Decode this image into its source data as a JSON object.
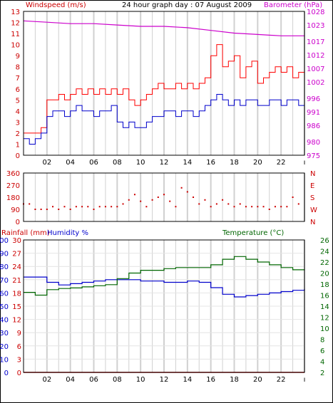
{
  "chart_data": [
    {
      "type": "line",
      "title": "24 hour graph day : 07 August 2009",
      "ylabel": "Windspeed (m/s)",
      "y2label": "Barometer (hPa)",
      "ylim": [
        0,
        13
      ],
      "yticks": [
        0,
        1,
        2,
        3,
        4,
        5,
        6,
        7,
        8,
        9,
        10,
        11,
        12,
        13
      ],
      "y2lim": [
        975,
        1028
      ],
      "y2ticks": [
        975,
        980,
        986,
        991,
        996,
        1002,
        1007,
        1012,
        1017,
        1023,
        1028
      ],
      "xlim": [
        0,
        24
      ],
      "xtick_labels": [
        "02",
        "04",
        "06",
        "08",
        "10",
        "12",
        "14",
        "16",
        "18",
        "20",
        "22"
      ],
      "grid": true,
      "colors": {
        "gust": "#ff0000",
        "average": "#0000cc",
        "barometer": "#cc00cc",
        "axis_left": "#cc0000",
        "axis_right": "#cc00cc"
      },
      "series": [
        {
          "key": "gust",
          "x": [
            0,
            0.5,
            1,
            1.5,
            2,
            2.5,
            3,
            3.5,
            4,
            4.5,
            5,
            5.5,
            6,
            6.5,
            7,
            7.5,
            8,
            8.5,
            9,
            9.5,
            10,
            10.5,
            11,
            11.5,
            12,
            12.5,
            13,
            13.5,
            14,
            14.5,
            15,
            15.5,
            16,
            16.5,
            17,
            17.5,
            18,
            18.5,
            19,
            19.5,
            20,
            20.5,
            21,
            21.5,
            22,
            22.5,
            23,
            23.5
          ],
          "values": [
            2,
            2,
            2,
            2.5,
            5,
            5,
            5.5,
            5,
            5.5,
            6,
            5.5,
            6,
            5.5,
            6,
            5.5,
            6,
            5.5,
            6,
            5,
            4.5,
            5,
            5.5,
            6,
            6.5,
            6,
            6,
            6.5,
            6,
            6.5,
            6,
            6.5,
            7,
            9,
            10,
            8,
            8.5,
            9,
            7,
            8,
            8.5,
            6.5,
            7,
            7.5,
            8,
            7.5,
            8,
            7,
            7.5
          ]
        },
        {
          "key": "average",
          "x": [
            0,
            0.5,
            1,
            1.5,
            2,
            2.5,
            3,
            3.5,
            4,
            4.5,
            5,
            5.5,
            6,
            6.5,
            7,
            7.5,
            8,
            8.5,
            9,
            9.5,
            10,
            10.5,
            11,
            11.5,
            12,
            12.5,
            13,
            13.5,
            14,
            14.5,
            15,
            15.5,
            16,
            16.5,
            17,
            17.5,
            18,
            18.5,
            19,
            19.5,
            20,
            20.5,
            21,
            21.5,
            22,
            22.5,
            23,
            23.5
          ],
          "values": [
            1.5,
            1,
            1.5,
            2,
            3.5,
            4,
            4,
            3.5,
            4,
            4.5,
            4,
            4,
            3.5,
            4,
            4,
            4.5,
            3,
            2.5,
            3,
            2.5,
            2.5,
            3,
            3.5,
            3.5,
            4,
            4,
            3.5,
            4,
            4,
            3.5,
            4,
            4.5,
            5,
            5.5,
            5,
            4.5,
            5,
            4.5,
            5,
            5,
            4.5,
            4.5,
            5,
            5,
            4.5,
            5,
            5,
            4.5
          ]
        },
        {
          "key": "barometer",
          "axis": "right",
          "x": [
            0,
            2,
            4,
            6,
            8,
            10,
            12,
            14,
            16,
            18,
            20,
            22,
            24
          ],
          "values": [
            1024.5,
            1024,
            1023.5,
            1023.5,
            1023,
            1022.5,
            1022.5,
            1022,
            1021,
            1020,
            1019.5,
            1019,
            1019
          ]
        }
      ]
    },
    {
      "type": "scatter",
      "ylabel": "Wind direction",
      "ylim": [
        0,
        360
      ],
      "yticks": [
        0,
        90,
        180,
        270,
        360
      ],
      "compass_labels": [
        "N",
        "W",
        "S",
        "E",
        "N"
      ],
      "xlim": [
        0,
        24
      ],
      "color": "#cc0000",
      "x": [
        0,
        0.5,
        1,
        1.5,
        2,
        2.5,
        3,
        3.5,
        4,
        4.5,
        5,
        5.5,
        6,
        6.5,
        7,
        7.5,
        8,
        8.5,
        9,
        9.5,
        10,
        10.5,
        11,
        11.5,
        12,
        12.5,
        13,
        13.5,
        14,
        14.5,
        15,
        15.5,
        16,
        16.5,
        17,
        17.5,
        18,
        18.5,
        19,
        19.5,
        20,
        20.5,
        21,
        21.5,
        22,
        22.5,
        23,
        23.5
      ],
      "values": [
        130,
        130,
        90,
        90,
        90,
        110,
        90,
        110,
        90,
        110,
        110,
        110,
        90,
        110,
        110,
        110,
        110,
        130,
        160,
        200,
        150,
        110,
        160,
        180,
        200,
        150,
        110,
        250,
        220,
        180,
        130,
        160,
        110,
        130,
        160,
        130,
        110,
        130,
        110,
        110,
        110,
        110,
        90,
        110,
        110,
        110,
        180,
        130
      ]
    },
    {
      "type": "line",
      "ylabel": "Rainfall (mm)",
      "y2label": "Humidity %",
      "y3label": "Temperature (°C)",
      "ylim": [
        0,
        30
      ],
      "yticks": [
        0,
        3,
        6,
        9,
        12,
        15,
        18,
        21,
        24,
        27,
        30
      ],
      "humidity_ticks": [
        0,
        10,
        20,
        30,
        40,
        50,
        60,
        70,
        80,
        90,
        100
      ],
      "temp_lim": [
        2,
        26
      ],
      "temp_ticks": [
        2,
        4,
        6,
        8,
        10,
        12,
        14,
        16,
        18,
        20,
        22,
        24,
        26
      ],
      "xlim": [
        0,
        24
      ],
      "xtick_labels": [
        "02",
        "04",
        "06",
        "08",
        "10",
        "12",
        "14",
        "16",
        "18",
        "20",
        "22"
      ],
      "colors": {
        "rain": "#cc0000",
        "humidity": "#0000cc",
        "temperature": "#006600",
        "axis_left": "#cc0000",
        "axis_mid": "#0000cc",
        "axis_right": "#006600"
      },
      "series": [
        {
          "key": "rain",
          "x": [
            0,
            24
          ],
          "values": [
            0,
            0
          ]
        },
        {
          "key": "humidity",
          "x": [
            0,
            1,
            2,
            3,
            4,
            5,
            6,
            7,
            8,
            9,
            10,
            11,
            12,
            13,
            14,
            15,
            16,
            17,
            18,
            19,
            20,
            21,
            22,
            23,
            24
          ],
          "values": [
            72,
            72,
            68,
            66,
            67,
            68,
            69,
            70,
            70,
            70,
            69,
            69,
            68,
            68,
            69,
            68,
            64,
            59,
            57,
            58,
            59,
            60,
            61,
            62,
            63
          ]
        },
        {
          "key": "temperature",
          "x": [
            0,
            1,
            2,
            3,
            4,
            5,
            6,
            7,
            8,
            9,
            10,
            11,
            12,
            13,
            14,
            15,
            16,
            17,
            18,
            19,
            20,
            21,
            22,
            23,
            24
          ],
          "values": [
            16.5,
            16,
            17,
            17.2,
            17.3,
            17.5,
            17.7,
            17.9,
            19,
            20,
            20.5,
            20.5,
            20.8,
            21,
            21,
            21,
            21.5,
            22.5,
            23,
            22.5,
            22,
            21.5,
            21,
            20.6,
            20.5
          ]
        }
      ]
    }
  ]
}
